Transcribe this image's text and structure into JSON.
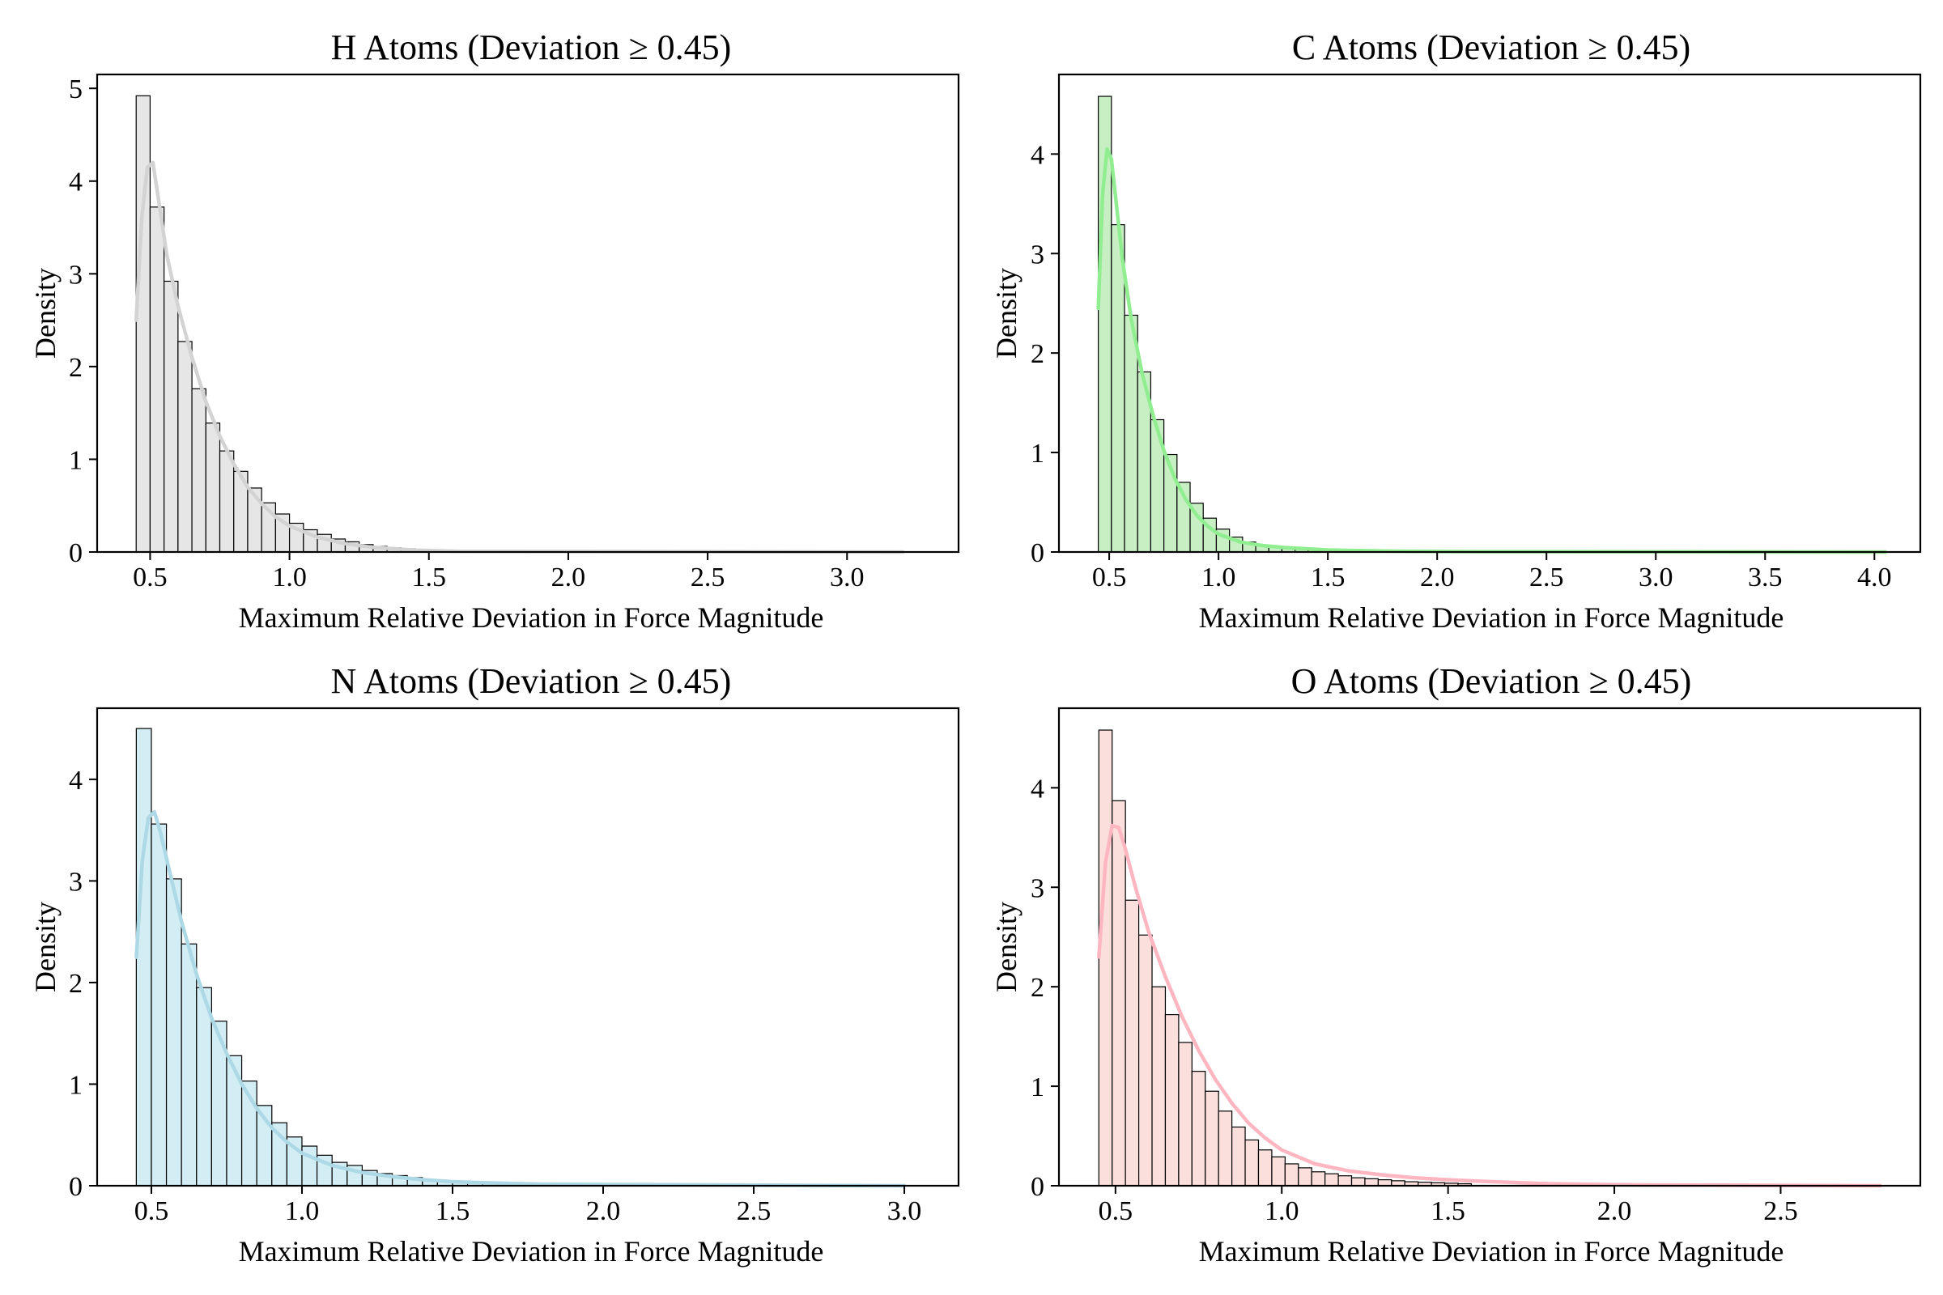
{
  "chart_data": [
    {
      "type": "histogram",
      "title": "H Atoms (Deviation ≥ 0.45)",
      "xlabel": "Maximum Relative Deviation in Force Magnitude",
      "ylabel": "Density",
      "xlim": [
        0.31,
        3.4
      ],
      "ylim": [
        0,
        5.15
      ],
      "xticks": [
        0.5,
        1.0,
        1.5,
        2.0,
        2.5,
        3.0
      ],
      "xtick_labels": [
        "0.5",
        "1.0",
        "1.5",
        "2.0",
        "2.5",
        "3.0"
      ],
      "yticks": [
        0,
        1,
        2,
        3,
        4,
        5
      ],
      "ytick_labels": [
        "0",
        "1",
        "2",
        "3",
        "4",
        "5"
      ],
      "bar_color": "#e6e6e6",
      "kde_color": "#d3d3d3",
      "bin_start": 0.45,
      "bin_width": 0.05,
      "densities": [
        4.92,
        3.72,
        2.92,
        2.27,
        1.76,
        1.39,
        1.09,
        0.87,
        0.69,
        0.53,
        0.41,
        0.31,
        0.24,
        0.19,
        0.14,
        0.11,
        0.08,
        0.06,
        0.045,
        0.035,
        0.025,
        0.02,
        0.015
      ],
      "kde_x": [
        0.45,
        0.47,
        0.49,
        0.51,
        0.53,
        0.56,
        0.6,
        0.65,
        0.7,
        0.75,
        0.8,
        0.85,
        0.9,
        0.95,
        1.0,
        1.1,
        1.2,
        1.3,
        1.45,
        1.6,
        3.2
      ],
      "kde_y": [
        2.5,
        3.6,
        4.15,
        4.2,
        3.8,
        3.2,
        2.65,
        2.1,
        1.62,
        1.25,
        0.95,
        0.7,
        0.52,
        0.38,
        0.28,
        0.16,
        0.09,
        0.05,
        0.02,
        0.008,
        0.0
      ]
    },
    {
      "type": "histogram",
      "title": "C Atoms (Deviation ≥ 0.45)",
      "xlabel": "Maximum Relative Deviation in Force Magnitude",
      "ylabel": "Density",
      "xlim": [
        0.27,
        4.21
      ],
      "ylim": [
        0,
        4.8
      ],
      "xticks": [
        0.5,
        1.0,
        1.5,
        2.0,
        2.5,
        3.0,
        3.5,
        4.0
      ],
      "xtick_labels": [
        "0.5",
        "1.0",
        "1.5",
        "2.0",
        "2.5",
        "3.0",
        "3.5",
        "4.0"
      ],
      "yticks": [
        0,
        1,
        2,
        3,
        4
      ],
      "ytick_labels": [
        "0",
        "1",
        "2",
        "3",
        "4"
      ],
      "bar_color": "#c8efc3",
      "kde_color": "#90ee90",
      "bin_start": 0.45,
      "bin_width": 0.06,
      "densities": [
        4.58,
        3.29,
        2.38,
        1.81,
        1.33,
        0.98,
        0.7,
        0.49,
        0.34,
        0.23,
        0.15,
        0.1,
        0.07,
        0.05,
        0.035,
        0.025,
        0.018,
        0.012,
        0.008
      ],
      "kde_x": [
        0.45,
        0.47,
        0.49,
        0.51,
        0.53,
        0.56,
        0.6,
        0.65,
        0.7,
        0.75,
        0.8,
        0.85,
        0.9,
        0.95,
        1.0,
        1.1,
        1.2,
        1.3,
        1.5,
        1.8,
        2.2,
        4.05
      ],
      "kde_y": [
        2.45,
        3.6,
        4.05,
        3.95,
        3.55,
        2.95,
        2.35,
        1.8,
        1.38,
        1.02,
        0.74,
        0.53,
        0.37,
        0.26,
        0.18,
        0.1,
        0.065,
        0.045,
        0.02,
        0.008,
        0.003,
        0.0
      ]
    },
    {
      "type": "histogram",
      "title": "N Atoms (Deviation ≥ 0.45)",
      "xlabel": "Maximum Relative Deviation in Force Magnitude",
      "ylabel": "Density",
      "xlim": [
        0.32,
        3.18
      ],
      "ylim": [
        0,
        4.7
      ],
      "xticks": [
        0.5,
        1.0,
        1.5,
        2.0,
        2.5,
        3.0
      ],
      "xtick_labels": [
        "0.5",
        "1.0",
        "1.5",
        "2.0",
        "2.5",
        "3.0"
      ],
      "yticks": [
        0,
        1,
        2,
        3,
        4
      ],
      "ytick_labels": [
        "0",
        "1",
        "2",
        "3",
        "4"
      ],
      "bar_color": "#d3edf4",
      "kde_color": "#add8e6",
      "bin_start": 0.45,
      "bin_width": 0.05,
      "densities": [
        4.5,
        3.56,
        3.02,
        2.38,
        1.95,
        1.62,
        1.28,
        1.03,
        0.79,
        0.62,
        0.48,
        0.39,
        0.3,
        0.23,
        0.2,
        0.15,
        0.12,
        0.1,
        0.08,
        0.06,
        0.05,
        0.04,
        0.03,
        0.025,
        0.02
      ],
      "kde_x": [
        0.45,
        0.47,
        0.49,
        0.51,
        0.53,
        0.56,
        0.6,
        0.65,
        0.7,
        0.75,
        0.8,
        0.85,
        0.9,
        0.95,
        1.0,
        1.1,
        1.2,
        1.3,
        1.4,
        1.5,
        1.6,
        1.8,
        3.0
      ],
      "kde_y": [
        2.25,
        3.2,
        3.62,
        3.68,
        3.48,
        3.1,
        2.6,
        2.08,
        1.65,
        1.3,
        1.0,
        0.76,
        0.57,
        0.43,
        0.32,
        0.2,
        0.13,
        0.09,
        0.06,
        0.04,
        0.03,
        0.015,
        0.0
      ]
    },
    {
      "type": "histogram",
      "title": "O Atoms (Deviation ≥ 0.45)",
      "xlabel": "Maximum Relative Deviation in Force Magnitude",
      "ylabel": "Density",
      "xlim": [
        0.33,
        2.92
      ],
      "ylim": [
        0,
        4.8
      ],
      "xticks": [
        0.5,
        1.0,
        1.5,
        2.0,
        2.5
      ],
      "xtick_labels": [
        "0.5",
        "1.0",
        "1.5",
        "2.0",
        "2.5"
      ],
      "yticks": [
        0,
        1,
        2,
        3,
        4
      ],
      "ytick_labels": [
        "0",
        "1",
        "2",
        "3",
        "4"
      ],
      "bar_color": "#fbdfdd",
      "kde_color": "#ffb6c1",
      "bin_start": 0.45,
      "bin_width": 0.04,
      "densities": [
        4.58,
        3.87,
        2.87,
        2.52,
        2.0,
        1.72,
        1.44,
        1.15,
        0.95,
        0.75,
        0.59,
        0.46,
        0.36,
        0.29,
        0.22,
        0.18,
        0.14,
        0.12,
        0.1,
        0.08,
        0.07,
        0.06,
        0.05,
        0.04,
        0.035,
        0.03,
        0.025,
        0.02
      ],
      "kde_x": [
        0.45,
        0.47,
        0.49,
        0.51,
        0.53,
        0.56,
        0.6,
        0.65,
        0.7,
        0.75,
        0.8,
        0.85,
        0.9,
        0.95,
        1.0,
        1.1,
        1.2,
        1.3,
        1.4,
        1.5,
        1.6,
        1.8,
        2.0,
        2.8
      ],
      "kde_y": [
        2.3,
        3.25,
        3.62,
        3.6,
        3.38,
        3.0,
        2.55,
        2.1,
        1.7,
        1.36,
        1.07,
        0.83,
        0.63,
        0.48,
        0.36,
        0.22,
        0.15,
        0.11,
        0.08,
        0.06,
        0.045,
        0.02,
        0.01,
        0.0
      ]
    }
  ]
}
